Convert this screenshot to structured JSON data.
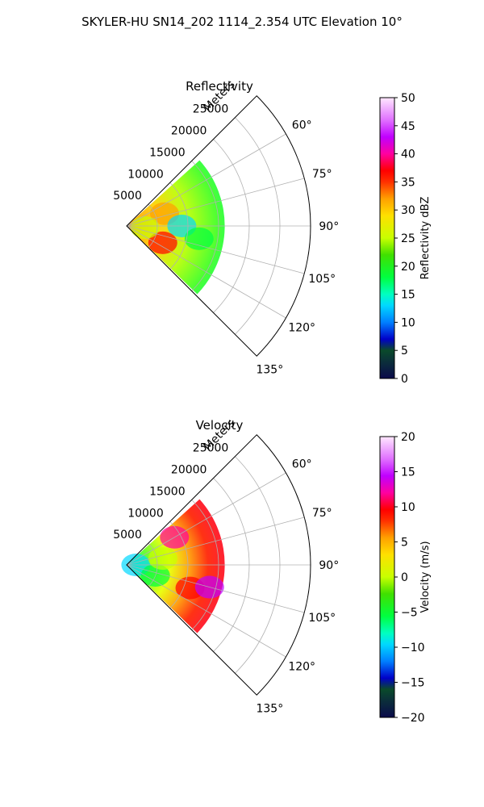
{
  "figure": {
    "title": "SKYLER-HU  SN14_202  1114_2.354 UTC Elevation 10°"
  },
  "chart_data": [
    {
      "type": "heatmap",
      "projection": "polar-sector",
      "title": "Reflectivity",
      "range_label": "Meters",
      "theta_range_deg": [
        45,
        135
      ],
      "r_range_m": [
        0,
        30000
      ],
      "r_ticks": [
        5000,
        10000,
        15000,
        20000,
        25000
      ],
      "r_tick_labels": [
        "5000",
        "10000",
        "15000",
        "20000",
        "25000"
      ],
      "theta_ticks_deg": [
        60,
        75,
        90,
        105,
        120,
        135
      ],
      "theta_tick_labels": [
        "60°",
        "75°",
        "90°",
        "105°",
        "120°",
        "135°"
      ],
      "grid": true,
      "colorbar": {
        "label": "Reflectivity dBZ",
        "range": [
          0,
          50
        ],
        "ticks": [
          0,
          5,
          10,
          15,
          20,
          25,
          30,
          35,
          40,
          45,
          50
        ],
        "tick_labels": [
          "0",
          "5",
          "10",
          "15",
          "20",
          "25",
          "30",
          "35",
          "40",
          "45",
          "50"
        ]
      },
      "field": {
        "data_extent_r_m": [
          0,
          16000
        ],
        "theta_span_deg": [
          48,
          134
        ],
        "regions": [
          {
            "theta_deg": 72,
            "r_m": 6500,
            "value": 36
          },
          {
            "theta_deg": 115,
            "r_m": 6500,
            "value": 37
          },
          {
            "theta_deg": 95,
            "r_m": 3000,
            "value": 28
          },
          {
            "theta_deg": 90,
            "r_m": 9000,
            "value": 17
          },
          {
            "theta_deg": 100,
            "r_m": 12000,
            "value": 18
          }
        ]
      }
    },
    {
      "type": "heatmap",
      "projection": "polar-sector",
      "title": "Velocity",
      "range_label": "Meters",
      "theta_range_deg": [
        45,
        135
      ],
      "r_range_m": [
        0,
        30000
      ],
      "r_ticks": [
        5000,
        10000,
        15000,
        20000,
        25000
      ],
      "r_tick_labels": [
        "5000",
        "10000",
        "15000",
        "20000",
        "25000"
      ],
      "theta_ticks_deg": [
        60,
        75,
        90,
        105,
        120,
        135
      ],
      "theta_tick_labels": [
        "60°",
        "75°",
        "90°",
        "105°",
        "120°",
        "135°"
      ],
      "grid": true,
      "colorbar": {
        "label": "Velocity (m/s)",
        "range": [
          -20,
          20
        ],
        "ticks": [
          -20,
          -15,
          -10,
          -5,
          0,
          5,
          10,
          15,
          20
        ],
        "tick_labels": [
          "−20",
          "−15",
          "−10",
          "−5",
          "0",
          "5",
          "10",
          "15",
          "20"
        ]
      },
      "field": {
        "data_extent_r_m": [
          0,
          16000
        ],
        "theta_span_deg": [
          48,
          134
        ],
        "regions": [
          {
            "theta_deg": 90,
            "r_m": 1500,
            "value": -8
          },
          {
            "theta_deg": 110,
            "r_m": 5000,
            "value": -3
          },
          {
            "theta_deg": 80,
            "r_m": 6000,
            "value": 2
          },
          {
            "theta_deg": 60,
            "r_m": 9000,
            "value": 12
          },
          {
            "theta_deg": 110,
            "r_m": 11000,
            "value": 10
          },
          {
            "theta_deg": 105,
            "r_m": 14000,
            "value": 16
          }
        ]
      }
    }
  ]
}
